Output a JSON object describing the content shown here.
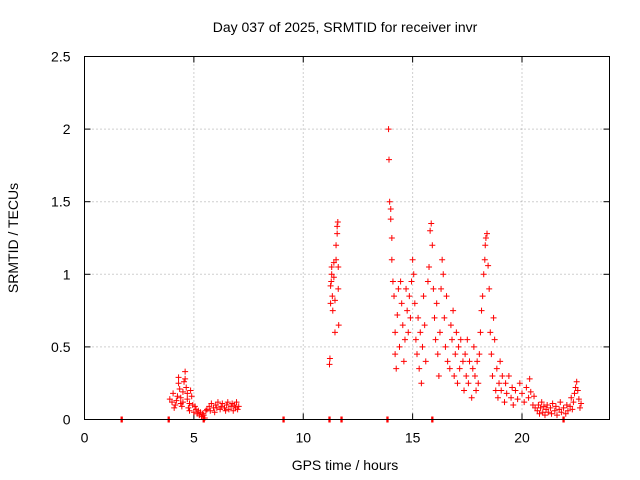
{
  "chart_data": {
    "type": "scatter",
    "title": "Day 037 of 2025, SRMTID for receiver invr",
    "xlabel": "GPS time / hours",
    "ylabel": "SRMTID / TECUs",
    "xlim": [
      0,
      24
    ],
    "ylim": [
      0,
      2.5
    ],
    "x_ticks": [
      0,
      5,
      10,
      15,
      20
    ],
    "x_tick_labels": [
      "0",
      "5",
      "10",
      "15",
      "20"
    ],
    "y_ticks": [
      0,
      0.5,
      1,
      1.5,
      2,
      2.5
    ],
    "y_tick_labels": [
      "0",
      "0.5",
      "1",
      "1.5",
      "2",
      "2.5"
    ],
    "grid": true,
    "marker": "+",
    "color": "#ff0000",
    "zero_clusters": [
      1.7,
      3.85,
      5.45,
      9.1,
      11.2,
      11.75,
      13.85,
      15.9,
      21.9
    ],
    "series": [
      {
        "name": "SRMTID",
        "points": [
          [
            3.9,
            0.14
          ],
          [
            4.0,
            0.12
          ],
          [
            4.05,
            0.18
          ],
          [
            4.1,
            0.08
          ],
          [
            4.15,
            0.1
          ],
          [
            4.2,
            0.13
          ],
          [
            4.25,
            0.16
          ],
          [
            4.3,
            0.25
          ],
          [
            4.3,
            0.29
          ],
          [
            4.35,
            0.21
          ],
          [
            4.4,
            0.15
          ],
          [
            4.4,
            0.11
          ],
          [
            4.45,
            0.09
          ],
          [
            4.5,
            0.12
          ],
          [
            4.5,
            0.19
          ],
          [
            4.55,
            0.26
          ],
          [
            4.6,
            0.28
          ],
          [
            4.6,
            0.33
          ],
          [
            4.65,
            0.22
          ],
          [
            4.7,
            0.18
          ],
          [
            4.7,
            0.14
          ],
          [
            4.75,
            0.08
          ],
          [
            4.8,
            0.11
          ],
          [
            4.8,
            0.06
          ],
          [
            4.85,
            0.2
          ],
          [
            4.9,
            0.16
          ],
          [
            4.95,
            0.1
          ],
          [
            5.0,
            0.05
          ],
          [
            5.05,
            0.09
          ],
          [
            5.1,
            0.07
          ],
          [
            5.15,
            0.04
          ],
          [
            5.2,
            0.06
          ],
          [
            5.25,
            0.03
          ],
          [
            5.3,
            0.05
          ],
          [
            5.35,
            0.02
          ],
          [
            5.4,
            0.04
          ],
          [
            5.45,
            0.03
          ],
          [
            5.5,
            0.01
          ],
          [
            5.55,
            0.06
          ],
          [
            5.6,
            0.07
          ],
          [
            5.7,
            0.09
          ],
          [
            5.75,
            0.06
          ],
          [
            5.8,
            0.11
          ],
          [
            5.9,
            0.08
          ],
          [
            5.95,
            0.05
          ],
          [
            6.0,
            0.1
          ],
          [
            6.05,
            0.08
          ],
          [
            6.1,
            0.12
          ],
          [
            6.2,
            0.07
          ],
          [
            6.25,
            0.09
          ],
          [
            6.3,
            0.11
          ],
          [
            6.4,
            0.08
          ],
          [
            6.45,
            0.06
          ],
          [
            6.5,
            0.1
          ],
          [
            6.55,
            0.12
          ],
          [
            6.6,
            0.07
          ],
          [
            6.7,
            0.09
          ],
          [
            6.75,
            0.11
          ],
          [
            6.8,
            0.06
          ],
          [
            6.85,
            0.1
          ],
          [
            6.9,
            0.08
          ],
          [
            6.95,
            0.12
          ],
          [
            7.0,
            0.07
          ],
          [
            7.05,
            0.09
          ],
          [
            11.2,
            0.38
          ],
          [
            11.22,
            0.42
          ],
          [
            11.25,
            0.8
          ],
          [
            11.25,
            0.92
          ],
          [
            11.28,
            0.95
          ],
          [
            11.3,
            1.0
          ],
          [
            11.3,
            1.05
          ],
          [
            11.33,
            0.85
          ],
          [
            11.35,
            0.75
          ],
          [
            11.4,
            0.98
          ],
          [
            11.4,
            1.08
          ],
          [
            11.45,
            0.82
          ],
          [
            11.45,
            0.6
          ],
          [
            11.5,
            1.1
          ],
          [
            11.5,
            1.2
          ],
          [
            11.55,
            1.28
          ],
          [
            11.55,
            1.33
          ],
          [
            11.58,
            1.36
          ],
          [
            11.6,
            1.05
          ],
          [
            11.6,
            0.9
          ],
          [
            11.62,
            0.65
          ],
          [
            13.9,
            2.0
          ],
          [
            13.92,
            1.79
          ],
          [
            13.95,
            1.5
          ],
          [
            14.0,
            1.45
          ],
          [
            14.0,
            1.38
          ],
          [
            14.05,
            1.25
          ],
          [
            14.05,
            1.1
          ],
          [
            14.1,
            0.95
          ],
          [
            14.15,
            0.85
          ],
          [
            14.2,
            0.6
          ],
          [
            14.2,
            0.45
          ],
          [
            14.25,
            0.35
          ],
          [
            14.3,
            0.72
          ],
          [
            14.35,
            0.9
          ],
          [
            14.4,
            0.5
          ],
          [
            14.45,
            0.95
          ],
          [
            14.5,
            0.8
          ],
          [
            14.55,
            0.65
          ],
          [
            14.6,
            0.4
          ],
          [
            14.65,
            0.55
          ],
          [
            14.7,
            0.9
          ],
          [
            14.75,
            0.75
          ],
          [
            14.8,
            0.6
          ],
          [
            14.85,
            0.85
          ],
          [
            14.9,
            0.7
          ],
          [
            14.95,
            0.95
          ],
          [
            15.0,
            1.1
          ],
          [
            15.05,
            1.0
          ],
          [
            15.1,
            0.8
          ],
          [
            15.15,
            0.55
          ],
          [
            15.2,
            0.45
          ],
          [
            15.25,
            0.7
          ],
          [
            15.3,
            0.35
          ],
          [
            15.35,
            0.6
          ],
          [
            15.4,
            0.25
          ],
          [
            15.45,
            0.5
          ],
          [
            15.5,
            0.85
          ],
          [
            15.55,
            0.65
          ],
          [
            15.6,
            0.4
          ],
          [
            15.7,
            0.95
          ],
          [
            15.75,
            1.05
          ],
          [
            15.8,
            1.3
          ],
          [
            15.85,
            1.35
          ],
          [
            15.9,
            1.2
          ],
          [
            15.95,
            0.9
          ],
          [
            16.0,
            0.7
          ],
          [
            16.05,
            0.55
          ],
          [
            16.1,
            0.8
          ],
          [
            16.15,
            0.45
          ],
          [
            16.2,
            0.3
          ],
          [
            16.25,
            0.6
          ],
          [
            16.3,
            0.9
          ],
          [
            16.35,
            1.1
          ],
          [
            16.4,
            1.0
          ],
          [
            16.45,
            0.7
          ],
          [
            16.5,
            0.5
          ],
          [
            16.55,
            0.85
          ],
          [
            16.6,
            0.4
          ],
          [
            16.7,
            0.35
          ],
          [
            16.75,
            0.65
          ],
          [
            16.8,
            0.55
          ],
          [
            16.85,
            0.75
          ],
          [
            16.9,
            0.3
          ],
          [
            16.95,
            0.45
          ],
          [
            17.0,
            0.6
          ],
          [
            17.05,
            0.25
          ],
          [
            17.1,
            0.5
          ],
          [
            17.15,
            0.35
          ],
          [
            17.2,
            0.55
          ],
          [
            17.3,
            0.4
          ],
          [
            17.35,
            0.2
          ],
          [
            17.4,
            0.45
          ],
          [
            17.45,
            0.3
          ],
          [
            17.5,
            0.55
          ],
          [
            17.55,
            0.25
          ],
          [
            17.6,
            0.4
          ],
          [
            17.7,
            0.15
          ],
          [
            17.75,
            0.35
          ],
          [
            17.8,
            0.5
          ],
          [
            17.85,
            0.3
          ],
          [
            17.9,
            0.2
          ],
          [
            17.95,
            0.4
          ],
          [
            18.0,
            0.25
          ],
          [
            18.05,
            0.45
          ],
          [
            18.1,
            0.6
          ],
          [
            18.15,
            0.75
          ],
          [
            18.2,
            0.85
          ],
          [
            18.25,
            1.0
          ],
          [
            18.3,
            1.1
          ],
          [
            18.32,
            1.2
          ],
          [
            18.35,
            1.25
          ],
          [
            18.4,
            1.28
          ],
          [
            18.45,
            1.06
          ],
          [
            18.5,
            0.9
          ],
          [
            18.55,
            0.6
          ],
          [
            18.6,
            0.45
          ],
          [
            18.65,
            0.3
          ],
          [
            18.7,
            0.7
          ],
          [
            18.75,
            0.55
          ],
          [
            18.8,
            0.2
          ],
          [
            18.85,
            0.35
          ],
          [
            18.9,
            0.15
          ],
          [
            18.95,
            0.25
          ],
          [
            19.0,
            0.4
          ],
          [
            19.05,
            0.2
          ],
          [
            19.1,
            0.3
          ],
          [
            19.2,
            0.12
          ],
          [
            19.25,
            0.25
          ],
          [
            19.3,
            0.18
          ],
          [
            19.4,
            0.3
          ],
          [
            19.5,
            0.15
          ],
          [
            19.55,
            0.22
          ],
          [
            19.6,
            0.1
          ],
          [
            19.7,
            0.2
          ],
          [
            19.8,
            0.14
          ],
          [
            19.9,
            0.25
          ],
          [
            20.0,
            0.18
          ],
          [
            20.1,
            0.12
          ],
          [
            20.2,
            0.22
          ],
          [
            20.3,
            0.15
          ],
          [
            20.35,
            0.28
          ],
          [
            20.4,
            0.19
          ],
          [
            20.5,
            0.1
          ],
          [
            20.55,
            0.16
          ],
          [
            20.6,
            0.08
          ],
          [
            20.7,
            0.06
          ],
          [
            20.75,
            0.1
          ],
          [
            20.8,
            0.04
          ],
          [
            20.85,
            0.08
          ],
          [
            20.9,
            0.12
          ],
          [
            20.95,
            0.05
          ],
          [
            21.0,
            0.09
          ],
          [
            21.05,
            0.03
          ],
          [
            21.1,
            0.07
          ],
          [
            21.15,
            0.1
          ],
          [
            21.2,
            0.05
          ],
          [
            21.3,
            0.08
          ],
          [
            21.35,
            0.04
          ],
          [
            21.4,
            0.11
          ],
          [
            21.5,
            0.06
          ],
          [
            21.55,
            0.09
          ],
          [
            21.6,
            0.03
          ],
          [
            21.7,
            0.07
          ],
          [
            21.75,
            0.12
          ],
          [
            21.8,
            0.05
          ],
          [
            21.9,
            0.08
          ],
          [
            22.0,
            0.04
          ],
          [
            22.05,
            0.1
          ],
          [
            22.1,
            0.06
          ],
          [
            22.2,
            0.09
          ],
          [
            22.25,
            0.15
          ],
          [
            22.3,
            0.07
          ],
          [
            22.35,
            0.12
          ],
          [
            22.4,
            0.18
          ],
          [
            22.45,
            0.22
          ],
          [
            22.5,
            0.26
          ],
          [
            22.55,
            0.2
          ],
          [
            22.6,
            0.14
          ],
          [
            22.65,
            0.08
          ],
          [
            22.7,
            0.11
          ]
        ]
      }
    ]
  }
}
